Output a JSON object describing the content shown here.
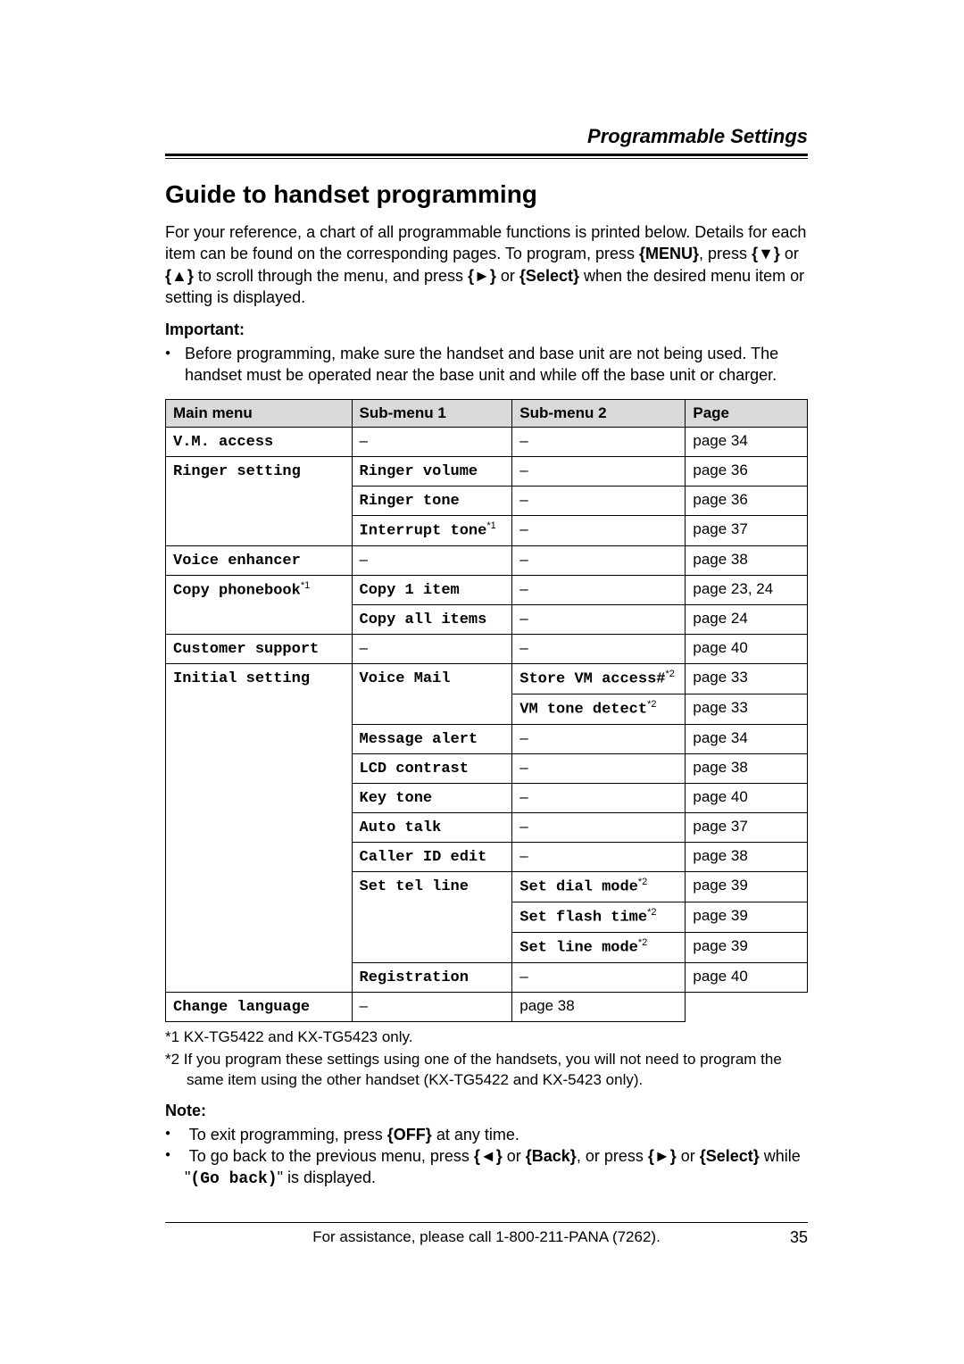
{
  "header": "Programmable Settings",
  "title": "Guide to handset programming",
  "intro_parts": {
    "a": "For your reference, a chart of all programmable functions is printed below. Details for each item can be found on the corresponding pages. To program, press ",
    "menu": "MENU",
    "b": ", press ",
    "down": "▼",
    "c": " or ",
    "up": "▲",
    "d": " to scroll through the menu, and press ",
    "right": "►",
    "e": " or ",
    "select": "Select",
    "f": " when the desired menu item or setting is displayed."
  },
  "important_label": "Important:",
  "important_text": "Before programming, make sure the handset and base unit are not being used. The handset must be operated near the base unit and while off the base unit or charger.",
  "table": {
    "headers": [
      "Main menu",
      "Sub-menu 1",
      "Sub-menu 2",
      "Page"
    ],
    "rows": [
      {
        "main": "V.M. access",
        "sub1": "–",
        "sub2": "–",
        "page": "page 34",
        "sub1_center": true,
        "sub2_center": true
      },
      {
        "main": "Ringer setting",
        "main_rowspan": 3,
        "sub1": "Ringer volume",
        "sub2": "–",
        "page": "page 36",
        "sub2_center": true
      },
      {
        "sub1": "Ringer tone",
        "sub2": "–",
        "page": "page 36",
        "sub2_center": true
      },
      {
        "sub1": "Interrupt tone",
        "sub1_sup": "*1",
        "sub2": "–",
        "page": "page 37",
        "sub2_center": true
      },
      {
        "main": "Voice enhancer",
        "sub1": "–",
        "sub2": "–",
        "page": "page 38",
        "sub1_center": true,
        "sub2_center": true
      },
      {
        "main": "Copy phonebook",
        "main_sup": "*1",
        "main_rowspan": 2,
        "sub1": "Copy 1 item",
        "sub2": "–",
        "page": "page 23, 24",
        "sub2_center": true
      },
      {
        "sub1": "Copy all items",
        "sub2": "–",
        "page": "page 24",
        "sub2_center": true
      },
      {
        "main": "Customer support",
        "sub1": "–",
        "sub2": "–",
        "page": "page 40",
        "sub1_center": true,
        "sub2_center": true
      },
      {
        "main": "Initial setting",
        "main_rowspan": 11,
        "sub1": "Voice Mail",
        "sub1_rowspan": 2,
        "sub2": "Store VM access#",
        "sub2_sup": "*2",
        "page": "page 33"
      },
      {
        "sub2": "VM tone detect",
        "sub2_sup": "*2",
        "page": "page 33"
      },
      {
        "sub1": "Message alert",
        "sub2": "–",
        "page": "page 34",
        "sub2_center": true
      },
      {
        "sub1": "LCD contrast",
        "sub2": "–",
        "page": "page 38",
        "sub2_center": true
      },
      {
        "sub1": "Key tone",
        "sub2": "–",
        "page": "page 40",
        "sub2_center": true
      },
      {
        "sub1": "Auto talk",
        "sub2": "–",
        "page": "page 37",
        "sub2_center": true
      },
      {
        "sub1": "Caller ID edit",
        "sub2": "–",
        "page": "page 38",
        "sub2_center": true
      },
      {
        "sub1": "Set tel line",
        "sub1_rowspan": 3,
        "sub2": "Set dial mode",
        "sub2_sup": "*2",
        "page": "page 39"
      },
      {
        "sub2": "Set flash time",
        "sub2_sup": "*2",
        "page": "page 39"
      },
      {
        "sub2": "Set line mode",
        "sub2_sup": "*2",
        "page": "page 39"
      },
      {
        "sub1": "Registration",
        "sub2": "–",
        "page": "page 40",
        "sub2_center": true
      },
      {
        "sub1": "Change language",
        "sub2": "–",
        "page": "page 38",
        "sub2_center": true
      }
    ]
  },
  "footnote1": "*1 KX-TG5422 and KX-TG5423 only.",
  "footnote2": "*2 If you program these settings using one of the handsets, you will not need to program the same item using the other handset (KX-TG5422 and KX-5423 only).",
  "note_label": "Note:",
  "note1_parts": {
    "a": "To exit programming, press ",
    "off": "OFF",
    "b": " at any time."
  },
  "note2_parts": {
    "a": "To go back to the previous menu, press ",
    "left": "◄",
    "b": " or ",
    "back": "Back",
    "c": ", or press ",
    "right": "►",
    "d": " or ",
    "select": "Select",
    "e": " while \"",
    "goback": "(Go back)",
    "f": "\" is displayed."
  },
  "footer": {
    "assist": "For assistance, please call 1-800-211-PANA (7262).",
    "pagenum": "35"
  }
}
